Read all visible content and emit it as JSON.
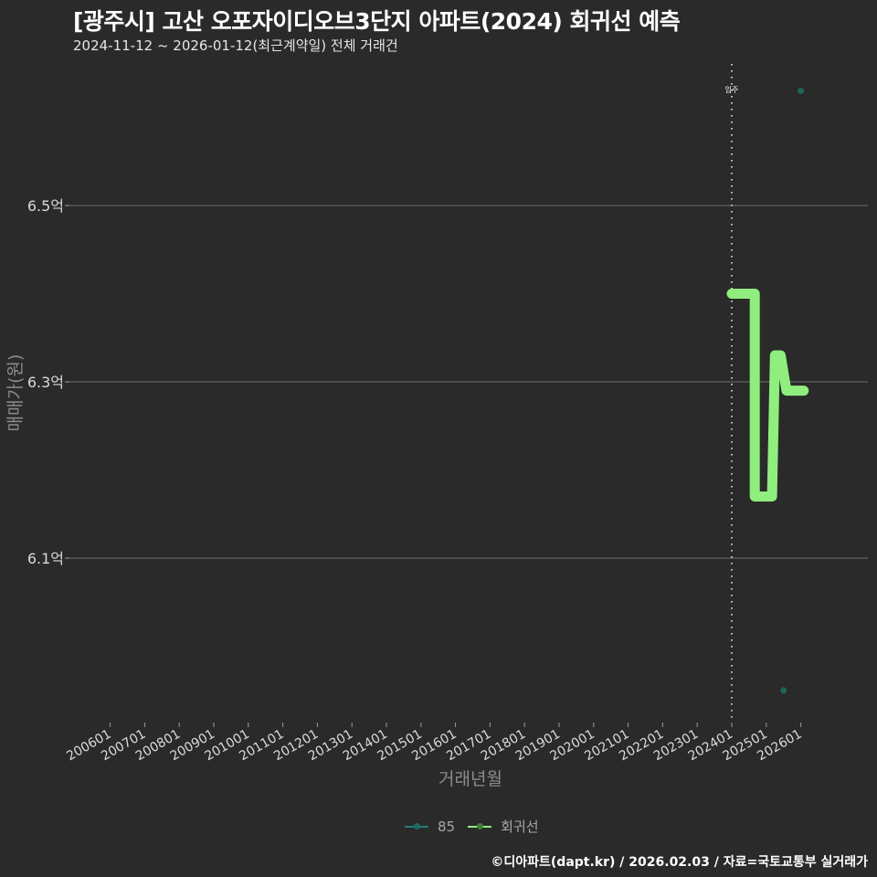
{
  "header": {
    "title": "[광주시] 고산 오포자이디오브3단지 아파트(2024) 회귀선 예측",
    "subtitle": "2024-11-12 ~ 2026-01-12(최근계약일) 전체 거래건"
  },
  "axes": {
    "ylabel": "매매가(원)",
    "xlabel": "거래년월",
    "yticks": [
      {
        "label": "6.5억",
        "value": 6.5
      },
      {
        "label": "6.3억",
        "value": 6.3
      },
      {
        "label": "6.1억",
        "value": 6.1
      }
    ],
    "xticks": [
      "200601",
      "200701",
      "200801",
      "200901",
      "201001",
      "201101",
      "201201",
      "201301",
      "201401",
      "201501",
      "201601",
      "201701",
      "201801",
      "201901",
      "202001",
      "202101",
      "202201",
      "202301",
      "202401",
      "202501",
      "202601"
    ]
  },
  "annotation": {
    "label": "입주",
    "x": "202401"
  },
  "legend": {
    "items": [
      {
        "label": "85",
        "color": "#1f7f7a"
      },
      {
        "label": "회귀선",
        "color": "#90ee7e"
      }
    ]
  },
  "footer": {
    "credit": "©디아파트(dapt.kr) / 2026.02.03 / 자료=국토교통부 실거래가"
  },
  "colors": {
    "background": "#2a2a2b",
    "grid": "#6e6e6e",
    "regression": "#90ee7e",
    "points_85": "#1f6b5e",
    "vline": "#c8c8c8"
  },
  "chart_data": {
    "type": "line",
    "title": "[광주시] 고산 오포자이디오브3단지 아파트(2024) 회귀선 예측",
    "subtitle": "2024-11-12 ~ 2026-01-12(최근계약일) 전체 거래건",
    "xlabel": "거래년월",
    "ylabel": "매매가(원)",
    "y_unit": "억",
    "ylim": [
      5.88,
      6.68
    ],
    "xlim": [
      "2005-07",
      "2027-02"
    ],
    "grid": {
      "horizontal": true,
      "vertical": false
    },
    "legend_position": "bottom",
    "vertical_line": {
      "x": "2024-01",
      "label": "입주",
      "style": "dotted"
    },
    "series": [
      {
        "name": "회귀선",
        "type": "step-line",
        "color": "#90ee7e",
        "points": [
          {
            "x": "2024-01",
            "y": 6.4
          },
          {
            "x": "2024-09",
            "y": 6.4
          },
          {
            "x": "2024-09",
            "y": 6.17
          },
          {
            "x": "2025-03",
            "y": 6.17
          },
          {
            "x": "2025-04",
            "y": 6.33
          },
          {
            "x": "2025-06",
            "y": 6.33
          },
          {
            "x": "2025-08",
            "y": 6.29
          },
          {
            "x": "2026-02",
            "y": 6.29
          }
        ]
      },
      {
        "name": "85",
        "type": "scatter",
        "color": "#1f7f7a",
        "points": [
          {
            "x": "2026-01",
            "y": 6.63
          },
          {
            "x": "2025-07",
            "y": 5.95
          },
          {
            "x": "2024-09",
            "y": 6.4
          }
        ]
      }
    ]
  }
}
